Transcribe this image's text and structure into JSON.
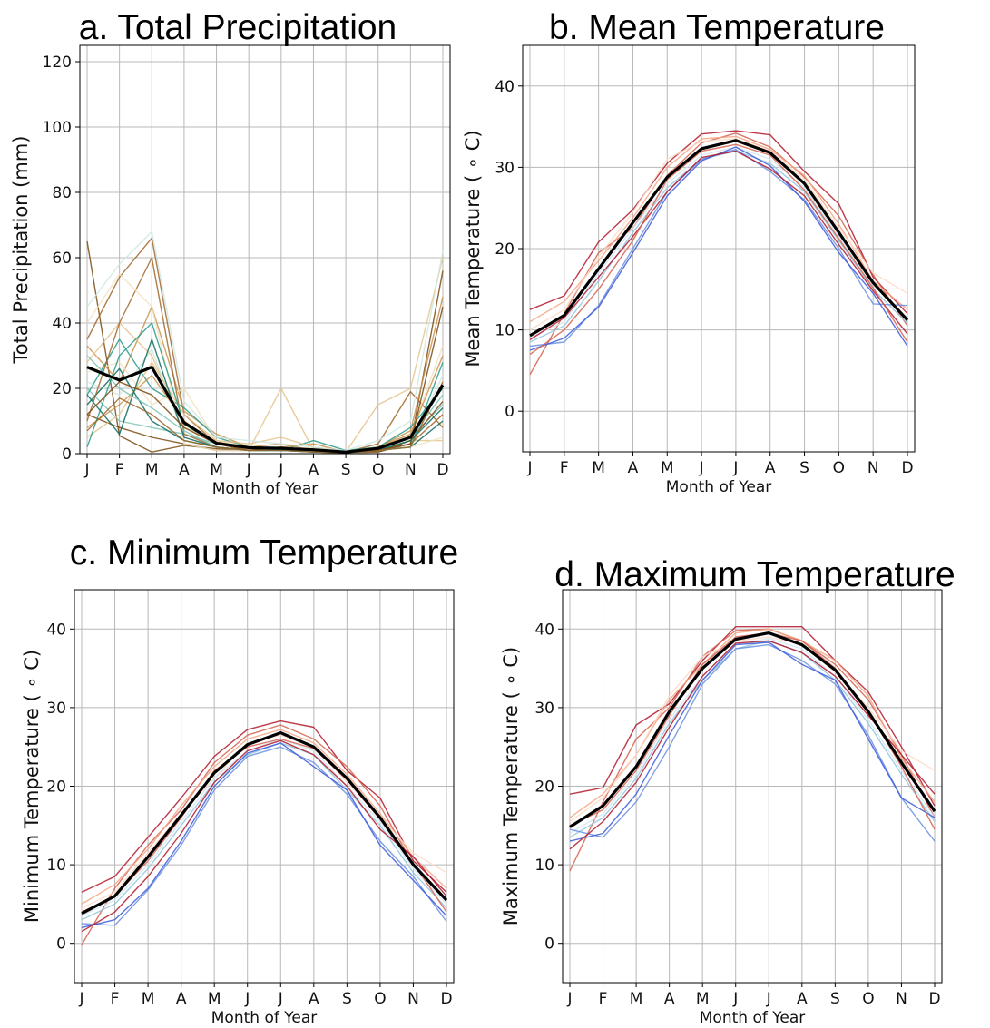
{
  "chart_data": [
    {
      "type": "line",
      "panel": "a",
      "title": "a. Total Precipitation",
      "xlabel": "Month of Year",
      "ylabel": "Total Precipitation (mm)",
      "categories": [
        "J",
        "F",
        "M",
        "A",
        "M",
        "J",
        "J",
        "A",
        "S",
        "O",
        "N",
        "D"
      ],
      "ylim": [
        0,
        125
      ],
      "yticks": [
        0,
        20,
        40,
        60,
        80,
        100,
        120
      ],
      "grid": true,
      "colors": {
        "ensemble_palette": [
          "#7a4a12",
          "#a0662a",
          "#c8924e",
          "#e3c48d",
          "#f1e2bf",
          "#cfe7e1",
          "#7cc3b5",
          "#2b9a8a",
          "#0c6b5e"
        ],
        "mean": "#000000"
      },
      "mean_series": [
        26.5,
        22.5,
        26.5,
        9.5,
        3.2,
        1.8,
        1.6,
        1.2,
        0.5,
        1.6,
        5.0,
        21.0
      ],
      "ensemble_series": [
        [
          65,
          5.5,
          0.5,
          2.5,
          1.5,
          1.0,
          1.0,
          0.5,
          0.3,
          0.5,
          3.0,
          56
        ],
        [
          35,
          54,
          66,
          12,
          3,
          1,
          1,
          1,
          0.5,
          3,
          19,
          8
        ],
        [
          33,
          22,
          45,
          13,
          6,
          2,
          2,
          3,
          0.5,
          2,
          7,
          48
        ],
        [
          28,
          40,
          30,
          8,
          4,
          1,
          20,
          1,
          0.5,
          1,
          4,
          4
        ],
        [
          25,
          28,
          15,
          20,
          4,
          2,
          1,
          2,
          0.3,
          0.5,
          6,
          33
        ],
        [
          22,
          18,
          32,
          5,
          2,
          1,
          1,
          1,
          0.5,
          1,
          3,
          24
        ],
        [
          20,
          10,
          8,
          6,
          3,
          2,
          2,
          1,
          0.5,
          1,
          5,
          15
        ],
        [
          18,
          35,
          20,
          14,
          5,
          2,
          1,
          4,
          1,
          2,
          8,
          20
        ],
        [
          15,
          26,
          10,
          4,
          2,
          1,
          1,
          0.5,
          0.3,
          1,
          2,
          10
        ],
        [
          12,
          8,
          5,
          3,
          1,
          1,
          2,
          1,
          0.5,
          0.5,
          4,
          16
        ],
        [
          10,
          40,
          60,
          6,
          2,
          1,
          1,
          1,
          0.5,
          1,
          3,
          12
        ],
        [
          8,
          15,
          24,
          10,
          3,
          2,
          3,
          1,
          0.5,
          2,
          6,
          30
        ],
        [
          5,
          12,
          28,
          12,
          4,
          3,
          5,
          2,
          0.5,
          15,
          20,
          60
        ],
        [
          40,
          55,
          45,
          3,
          1,
          1,
          1,
          1,
          0.5,
          1,
          2,
          5
        ],
        [
          45,
          58,
          68,
          16,
          5,
          4,
          3,
          2,
          1,
          4,
          10,
          62
        ],
        [
          30,
          20,
          14,
          7,
          2,
          1,
          1,
          1,
          0.5,
          1,
          5,
          18
        ],
        [
          2,
          30,
          40,
          9,
          3,
          2,
          1,
          1,
          0.3,
          1,
          2,
          28
        ],
        [
          18,
          6,
          35,
          5,
          2,
          1,
          1,
          1,
          0.5,
          1,
          4,
          14
        ],
        [
          12,
          22,
          18,
          8,
          3,
          1,
          2,
          1,
          0.5,
          1,
          3,
          45
        ],
        [
          7,
          17,
          12,
          4,
          2,
          1,
          1,
          0.5,
          0.3,
          1,
          2,
          22
        ]
      ]
    },
    {
      "type": "line",
      "panel": "b",
      "title": "b. Mean Temperature",
      "xlabel": "Month of Year",
      "ylabel": "Mean Temperature ( ∘ C)",
      "categories": [
        "J",
        "F",
        "M",
        "A",
        "M",
        "J",
        "J",
        "A",
        "S",
        "O",
        "N",
        "D"
      ],
      "ylim": [
        -5,
        45
      ],
      "yticks": [
        0,
        10,
        20,
        30,
        40
      ],
      "grid": true,
      "colors": {
        "ensemble_palette": [
          "#b2182b",
          "#d6604d",
          "#f4a582",
          "#fddbc7",
          "#d1e5f0",
          "#92c5de",
          "#6a8fe0",
          "#3b5bdb"
        ],
        "mean": "#000000"
      },
      "mean_series": [
        9.3,
        11.8,
        17.5,
        23.2,
        28.8,
        32.3,
        33.3,
        31.8,
        28.0,
        22.0,
        15.8,
        11.2
      ],
      "ensemble_series": [
        [
          12.5,
          14.2,
          20.8,
          24.8,
          30.5,
          34.1,
          34.5,
          34.0,
          29.5,
          25.5,
          16.5,
          12.0
        ],
        [
          4.5,
          12.0,
          19.5,
          22.5,
          29.0,
          33.0,
          34.2,
          32.5,
          28.8,
          24.0,
          16.8,
          10.5
        ],
        [
          11.0,
          13.5,
          18.5,
          23.8,
          30.0,
          33.5,
          33.8,
          32.2,
          29.0,
          23.0,
          16.0,
          12.5
        ],
        [
          10.0,
          12.5,
          19.0,
          24.5,
          31.0,
          33.2,
          33.5,
          32.0,
          28.5,
          22.5,
          17.0,
          14.5
        ],
        [
          9.0,
          11.0,
          17.0,
          22.5,
          28.0,
          31.5,
          32.5,
          31.0,
          27.5,
          21.5,
          15.5,
          11.5
        ],
        [
          8.5,
          10.5,
          16.0,
          22.0,
          27.5,
          31.0,
          32.0,
          30.5,
          27.0,
          21.0,
          15.0,
          10.8
        ],
        [
          8.0,
          8.5,
          13.0,
          20.0,
          27.0,
          31.0,
          32.2,
          29.5,
          26.0,
          20.0,
          13.2,
          13.0
        ],
        [
          7.5,
          9.0,
          12.8,
          19.5,
          26.5,
          30.8,
          32.5,
          30.2,
          25.8,
          19.5,
          14.5,
          8.0
        ],
        [
          8.8,
          11.5,
          16.5,
          21.5,
          27.0,
          31.2,
          32.0,
          29.8,
          26.5,
          20.5,
          14.8,
          9.5
        ],
        [
          7.0,
          10.0,
          15.0,
          21.0,
          28.5,
          32.0,
          32.8,
          31.5,
          27.2,
          21.2,
          15.2,
          8.5
        ]
      ]
    },
    {
      "type": "line",
      "panel": "c",
      "title": "c. Minimum Temperature",
      "xlabel": "Month of Year",
      "ylabel": "Minimum Temperature ( ∘ C)",
      "categories": [
        "J",
        "F",
        "M",
        "A",
        "M",
        "J",
        "J",
        "A",
        "S",
        "O",
        "N",
        "D"
      ],
      "ylim": [
        -5,
        45
      ],
      "yticks": [
        0,
        10,
        20,
        30,
        40
      ],
      "grid": true,
      "colors": {
        "ensemble_palette": [
          "#b2182b",
          "#d6604d",
          "#f4a582",
          "#fddbc7",
          "#d1e5f0",
          "#92c5de",
          "#6a8fe0",
          "#3b5bdb"
        ],
        "mean": "#000000"
      },
      "mean_series": [
        3.8,
        6.0,
        11.0,
        16.3,
        21.7,
        25.3,
        26.8,
        25.0,
        21.0,
        16.0,
        10.0,
        5.5
      ],
      "ensemble_series": [
        [
          6.5,
          8.5,
          13.5,
          18.5,
          23.8,
          27.2,
          28.3,
          27.5,
          22.0,
          18.5,
          10.5,
          6.5
        ],
        [
          -0.2,
          7.0,
          12.5,
          17.0,
          23.0,
          26.5,
          27.8,
          26.0,
          22.5,
          17.5,
          10.0,
          5.5
        ],
        [
          5.0,
          7.5,
          12.0,
          17.5,
          22.5,
          26.0,
          27.2,
          25.5,
          21.5,
          16.5,
          11.0,
          7.0
        ],
        [
          4.5,
          6.5,
          11.5,
          16.5,
          21.0,
          25.5,
          26.5,
          25.0,
          20.5,
          16.0,
          11.5,
          9.0
        ],
        [
          3.5,
          5.5,
          10.0,
          15.5,
          21.0,
          24.5,
          26.0,
          24.5,
          20.0,
          15.5,
          9.5,
          5.0
        ],
        [
          3.0,
          5.0,
          9.5,
          15.0,
          20.5,
          24.0,
          25.5,
          24.0,
          19.5,
          15.0,
          9.0,
          4.5
        ],
        [
          2.5,
          2.3,
          6.8,
          12.5,
          19.5,
          23.8,
          25.0,
          23.0,
          19.0,
          13.0,
          8.5,
          2.8
        ],
        [
          2.0,
          3.0,
          7.0,
          13.0,
          20.0,
          24.2,
          25.5,
          22.5,
          19.5,
          12.5,
          8.0,
          3.5
        ],
        [
          1.5,
          4.0,
          8.5,
          14.0,
          20.5,
          24.5,
          25.8,
          24.0,
          20.0,
          14.5,
          11.0,
          6.0
        ],
        [
          4.0,
          6.0,
          10.5,
          16.0,
          22.0,
          25.0,
          26.0,
          24.8,
          20.8,
          15.8,
          10.2,
          4.0
        ]
      ]
    },
    {
      "type": "line",
      "panel": "d",
      "title": "d. Maximum Temperature",
      "xlabel": "Month of Year",
      "ylabel": "Maximum Temperature ( ∘ C)",
      "categories": [
        "J",
        "F",
        "M",
        "A",
        "M",
        "J",
        "J",
        "A",
        "S",
        "O",
        "N",
        "D"
      ],
      "ylim": [
        -5,
        45
      ],
      "yticks": [
        0,
        10,
        20,
        30,
        40
      ],
      "grid": true,
      "colors": {
        "ensemble_palette": [
          "#b2182b",
          "#d6604d",
          "#f4a582",
          "#fddbc7",
          "#d1e5f0",
          "#92c5de",
          "#6a8fe0",
          "#3b5bdb"
        ],
        "mean": "#000000"
      },
      "mean_series": [
        14.8,
        17.5,
        22.5,
        29.5,
        35.0,
        38.7,
        39.5,
        38.0,
        34.8,
        29.5,
        23.0,
        16.8
      ],
      "ensemble_series": [
        [
          19.0,
          19.8,
          27.8,
          30.5,
          36.0,
          40.3,
          40.3,
          40.3,
          36.0,
          32.0,
          25.0,
          17.5
        ],
        [
          9.2,
          18.0,
          26.0,
          30.0,
          36.5,
          39.8,
          40.0,
          38.5,
          35.5,
          31.0,
          24.0,
          16.0
        ],
        [
          16.0,
          19.0,
          24.0,
          31.0,
          35.5,
          39.5,
          40.0,
          38.5,
          36.0,
          31.5,
          23.5,
          18.0
        ],
        [
          15.5,
          18.5,
          24.0,
          31.5,
          36.5,
          38.5,
          39.0,
          38.0,
          34.5,
          30.0,
          24.5,
          22.0
        ],
        [
          14.0,
          16.5,
          21.5,
          28.5,
          34.0,
          38.0,
          38.8,
          37.5,
          34.0,
          28.5,
          22.0,
          16.0
        ],
        [
          13.5,
          16.0,
          21.0,
          28.0,
          33.5,
          37.5,
          38.5,
          37.0,
          33.5,
          28.0,
          21.5,
          15.5
        ],
        [
          14.5,
          13.5,
          18.0,
          25.0,
          33.0,
          37.5,
          38.0,
          36.0,
          33.0,
          26.5,
          18.5,
          13.0
        ],
        [
          13.0,
          14.0,
          19.0,
          26.5,
          33.5,
          38.0,
          38.3,
          35.5,
          33.5,
          26.0,
          18.5,
          16.0
        ],
        [
          12.0,
          15.5,
          20.5,
          27.5,
          34.0,
          38.2,
          38.5,
          37.0,
          34.0,
          29.0,
          24.0,
          19.0
        ],
        [
          15.0,
          17.0,
          22.0,
          29.0,
          35.5,
          39.0,
          39.5,
          38.5,
          35.0,
          29.5,
          22.5,
          14.5
        ]
      ]
    }
  ]
}
